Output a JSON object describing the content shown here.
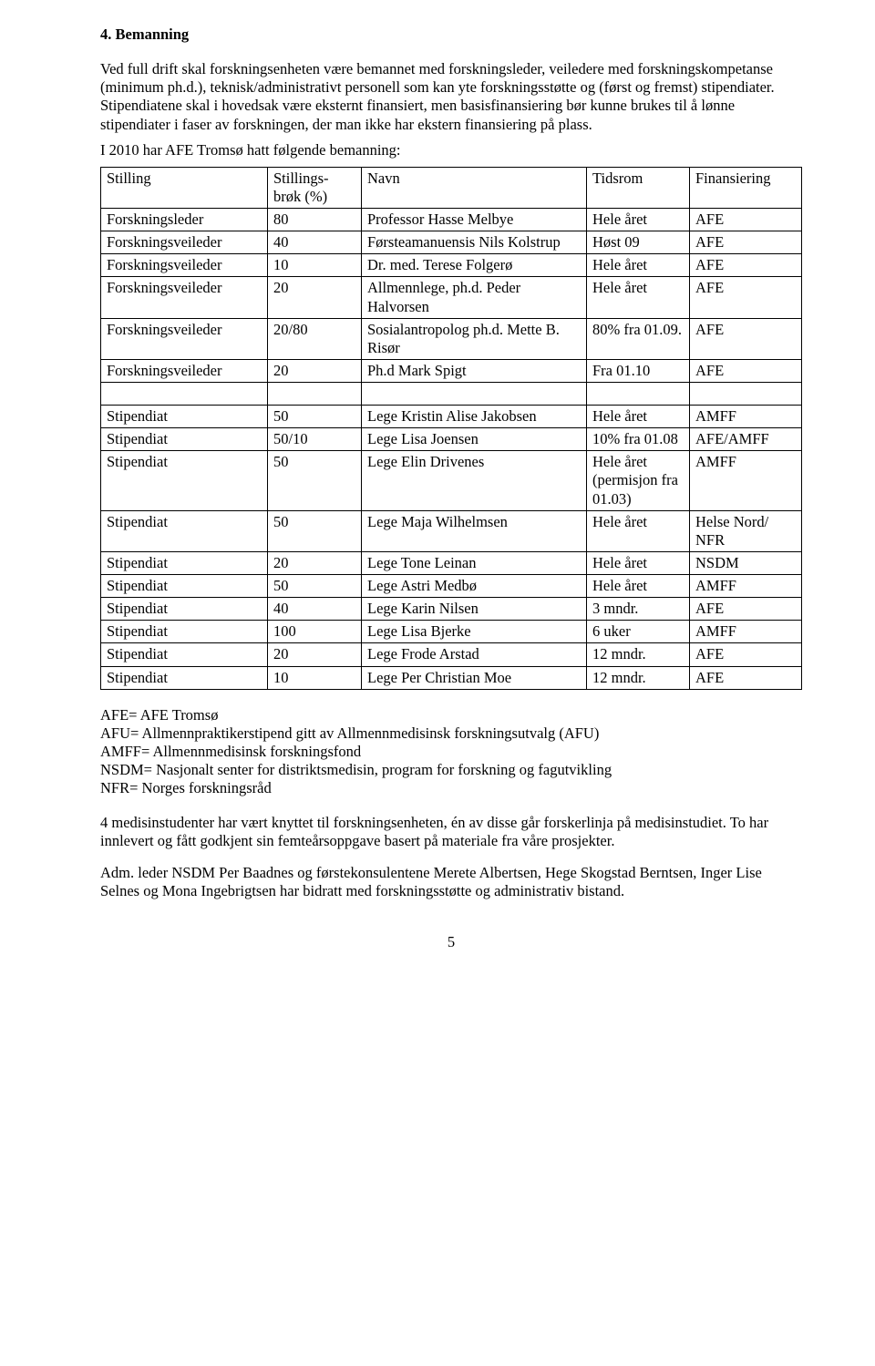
{
  "heading": "4. Bemanning",
  "intro": "Ved full drift skal forskningsenheten være bemannet med forskningsleder, veiledere med forskningskompetanse (minimum ph.d.), teknisk/administrativt personell som kan yte forskningsstøtte og (først og fremst) stipendiater. Stipendiatene skal i hovedsak være eksternt finansiert, men basisfinansiering bør kunne brukes til å lønne stipendiater i faser av forskningen, der man ikke har ekstern finansiering på plass.",
  "intro2": "I 2010 har AFE Tromsø hatt følgende bemanning:",
  "table": {
    "headers": [
      "Stilling",
      "Stillings-brøk (%)",
      "Navn",
      "Tidsrom",
      "Finansiering"
    ],
    "rows": [
      [
        "Forskningsleder",
        "80",
        "Professor Hasse Melbye",
        "Hele året",
        "AFE"
      ],
      [
        "Forskningsveileder",
        "40",
        "Førsteamanuensis Nils Kolstrup",
        "Høst 09",
        "AFE"
      ],
      [
        "Forskningsveileder",
        "10",
        "Dr. med. Terese Folgerø",
        "Hele året",
        "AFE"
      ],
      [
        "Forskningsveileder",
        "20",
        "Allmennlege, ph.d. Peder Halvorsen",
        "Hele året",
        "AFE"
      ],
      [
        "Forskningsveileder",
        "20/80",
        "Sosialantropolog ph.d. Mette B. Risør",
        "80% fra 01.09.",
        "AFE"
      ],
      [
        "Forskningsveileder",
        "20",
        "Ph.d Mark Spigt",
        "Fra 01.10",
        "AFE"
      ]
    ],
    "rows2": [
      [
        "Stipendiat",
        "50",
        "Lege Kristin Alise Jakobsen",
        "Hele året",
        "AMFF"
      ],
      [
        "Stipendiat",
        "50/10",
        "Lege Lisa Joensen",
        "10% fra 01.08",
        "AFE/AMFF"
      ],
      [
        "Stipendiat",
        "50",
        "Lege Elin Drivenes",
        "Hele året (permisjon fra 01.03)",
        "AMFF"
      ],
      [
        "Stipendiat",
        "50",
        "Lege Maja Wilhelmsen",
        "Hele året",
        "Helse Nord/ NFR"
      ],
      [
        "Stipendiat",
        "20",
        "Lege Tone Leinan",
        "Hele året",
        "NSDM"
      ],
      [
        "Stipendiat",
        "50",
        "Lege Astri Medbø",
        "Hele året",
        "AMFF"
      ],
      [
        "Stipendiat",
        "40",
        "Lege Karin Nilsen",
        "3 mndr.",
        "AFE"
      ],
      [
        "Stipendiat",
        "100",
        "Lege Lisa Bjerke",
        "6 uker",
        "AMFF"
      ],
      [
        "Stipendiat",
        "20",
        "Lege Frode Arstad",
        "12 mndr.",
        "AFE"
      ],
      [
        "Stipendiat",
        "10",
        "Lege Per Christian Moe",
        "12 mndr.",
        "AFE"
      ]
    ]
  },
  "legend": [
    "AFE= AFE Tromsø",
    "AFU= Allmennpraktikerstipend gitt av Allmennmedisinsk forskningsutvalg (AFU)",
    "AMFF= Allmennmedisinsk forskningsfond",
    "NSDM= Nasjonalt senter for distriktsmedisin, program for forskning og fagutvikling",
    "NFR= Norges forskningsråd"
  ],
  "para3": "4 medisinstudenter har vært knyttet til forskningsenheten, én av disse går forskerlinja på medisinstudiet.  To har innlevert og fått godkjent sin femteårsoppgave basert på materiale fra våre prosjekter.",
  "para4": "Adm. leder NSDM Per Baadnes og førstekonsulentene Merete Albertsen, Hege Skogstad Berntsen, Inger Lise Selnes  og Mona Ingebrigtsen har bidratt med forskningsstøtte og administrativ bistand.",
  "page_number": "5"
}
